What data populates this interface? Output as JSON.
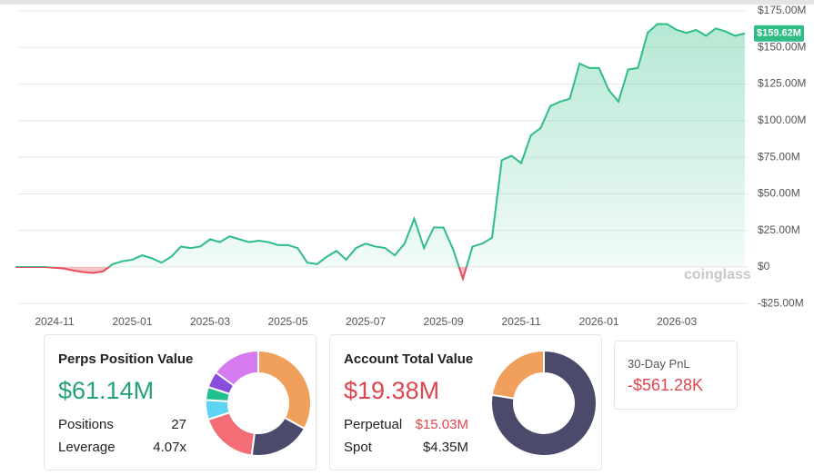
{
  "chart_data": {
    "type": "line",
    "categories": [
      null,
      null,
      null,
      null,
      "2024-11",
      null,
      null,
      null,
      null,
      null,
      null,
      null,
      "2025-01",
      null,
      null,
      null,
      null,
      null,
      null,
      null,
      "2025-03",
      null,
      null,
      null,
      null,
      null,
      null,
      null,
      "2025-05",
      null,
      null,
      null,
      null,
      null,
      null,
      null,
      "2025-07",
      null,
      null,
      null,
      null,
      null,
      null,
      null,
      "2025-09",
      null,
      null,
      null,
      null,
      null,
      null,
      null,
      "2025-11",
      null,
      null,
      null,
      null,
      null,
      null,
      null,
      "2026-01",
      null,
      null,
      null,
      null,
      null,
      null,
      null,
      "2026-03",
      null,
      null,
      null,
      null,
      null,
      null,
      null
    ],
    "values": [
      0,
      0,
      0,
      0,
      -0.5,
      -1,
      -2.5,
      -3.5,
      -4,
      -3,
      2,
      4,
      5,
      8,
      6,
      3,
      7,
      14,
      13,
      14,
      19,
      17,
      21,
      19,
      17,
      18,
      17,
      15,
      15,
      13,
      3,
      2,
      7,
      11,
      5,
      13,
      16,
      14,
      13,
      8,
      16,
      33,
      13,
      27,
      27,
      12,
      -8,
      14,
      16,
      20,
      73,
      76,
      71,
      90,
      95,
      110,
      113,
      115,
      139,
      136,
      136,
      121,
      113,
      135,
      136,
      160,
      166,
      166,
      162,
      160,
      162,
      158,
      163,
      161,
      158,
      159.62
    ],
    "color": "#2ebd85",
    "negative_color": "#ea4d5a",
    "ylim": [
      -25,
      175
    ],
    "yticks": [
      {
        "value": -25,
        "label": "-$25.00M"
      },
      {
        "value": 0,
        "label": "$0"
      },
      {
        "value": 25,
        "label": "$25.00M"
      },
      {
        "value": 50,
        "label": "$50.00M"
      },
      {
        "value": 75,
        "label": "$75.00M"
      },
      {
        "value": 100,
        "label": "$100.00M"
      },
      {
        "value": 125,
        "label": "$125.00M"
      },
      {
        "value": 150,
        "label": "$150.00M"
      },
      {
        "value": 175,
        "label": "$175.00M"
      }
    ],
    "grid": true,
    "current": {
      "value": 159.62,
      "label": "$159.62M"
    },
    "watermark": "coinglass"
  },
  "perps": {
    "title": "Perps Position Value",
    "value": "$61.14M",
    "rows": [
      {
        "label": "Positions",
        "value": "27"
      },
      {
        "label": "Leverage",
        "value": "4.07x"
      }
    ],
    "donut": {
      "values": [
        33,
        19,
        18,
        6,
        4,
        5,
        15
      ],
      "colors": [
        "#f0a05a",
        "#4b4a6b",
        "#f36d77",
        "#5fd3f3",
        "#1fbf8f",
        "#8b4ddb",
        "#d67af0"
      ]
    }
  },
  "account": {
    "title": "Account Total Value",
    "value": "$19.38M",
    "rows": [
      {
        "label": "Perpetual",
        "value": 15.03,
        "value_label": "$15.03M",
        "color": "#4b4a6b"
      },
      {
        "label": "Spot",
        "value": 4.35,
        "value_label": "$4.35M",
        "color": "#f0a05a"
      }
    ]
  },
  "pnl": {
    "title": "30-Day PnL",
    "value": "-$561.28K"
  }
}
